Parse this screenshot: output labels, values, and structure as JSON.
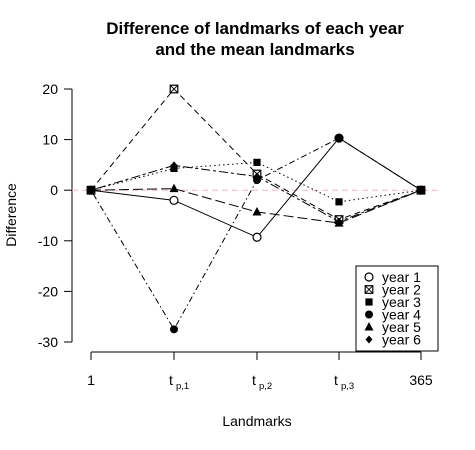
{
  "chart_data": {
    "type": "line",
    "title_lines": [
      "Difference of landmarks of each year",
      "and the mean landmarks"
    ],
    "xlabel": "Landmarks",
    "ylabel": "Difference",
    "x_ticks": [
      {
        "main": "1",
        "sub": ""
      },
      {
        "main": "t",
        "sub": "p,1"
      },
      {
        "main": "t",
        "sub": "p,2"
      },
      {
        "main": "t",
        "sub": "p,3"
      },
      {
        "main": "365",
        "sub": ""
      }
    ],
    "y_ticks": [
      20,
      10,
      0,
      -10,
      -20,
      -30
    ],
    "ylim": [
      -30,
      20
    ],
    "reference_line": {
      "y": 0,
      "color": "#ffb6c1"
    },
    "legend_position": "bottom-right",
    "series": [
      {
        "name": "year 1",
        "marker": "circle-open",
        "dash": "solid",
        "values": [
          0,
          -2,
          -9.3,
          10.3,
          0
        ]
      },
      {
        "name": "year 2",
        "marker": "square-x",
        "dash": "dashed",
        "values": [
          0,
          20,
          3.2,
          -5.8,
          0
        ]
      },
      {
        "name": "year 3",
        "marker": "square",
        "dash": "dotted",
        "values": [
          0,
          4.3,
          5.5,
          -2.3,
          0
        ]
      },
      {
        "name": "year 4",
        "marker": "circle",
        "dash": "dotdash",
        "values": [
          0,
          -27.5,
          2,
          10.3,
          0
        ]
      },
      {
        "name": "year 5",
        "marker": "triangle",
        "dash": "longdash",
        "values": [
          0,
          0.3,
          -4.3,
          -6.5,
          0
        ]
      },
      {
        "name": "year 6",
        "marker": "diamond",
        "dash": "twodash",
        "values": [
          0,
          4.9,
          2.7,
          -6.2,
          0
        ]
      }
    ]
  }
}
